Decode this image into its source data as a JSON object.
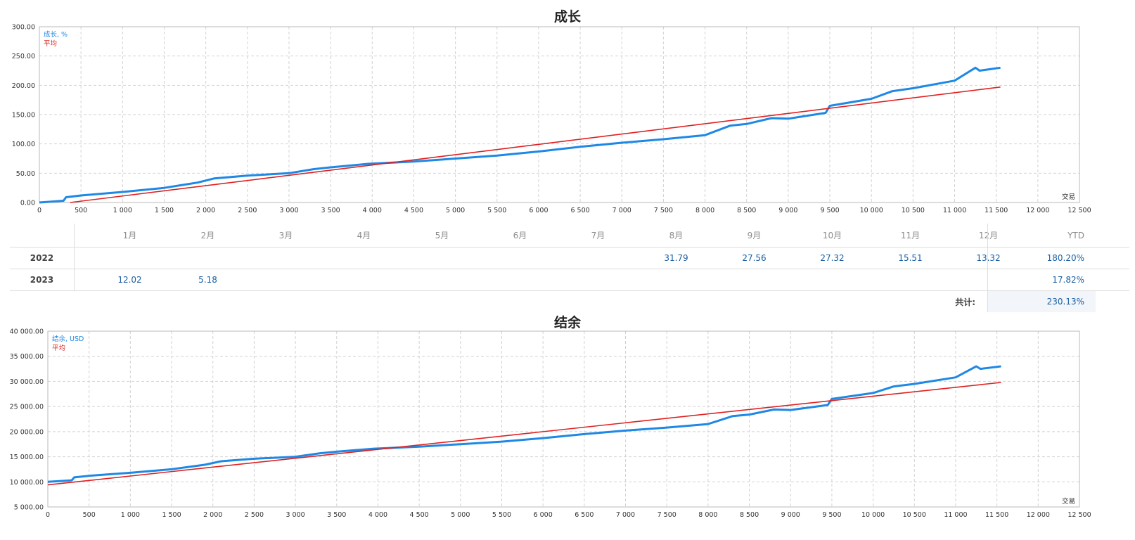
{
  "chart_data": [
    {
      "type": "line",
      "title": "成长",
      "xlabel": "交易",
      "ylabel": "",
      "xlim": [
        0,
        12500
      ],
      "ylim": [
        0,
        300
      ],
      "grid": true,
      "legend_position": "top-left",
      "x_ticks": [
        "0",
        "500",
        "1 000",
        "1 500",
        "2 000",
        "2 500",
        "3 000",
        "3 500",
        "4 000",
        "4 500",
        "5 000",
        "5 500",
        "6 000",
        "6 500",
        "7 000",
        "7 500",
        "8 000",
        "8 500",
        "9 000",
        "9 500",
        "10 000",
        "10 500",
        "11 000",
        "11 500",
        "12 000",
        "12 500"
      ],
      "y_ticks": [
        "0.00",
        "50.00",
        "100.00",
        "150.00",
        "200.00",
        "250.00",
        "300.00"
      ],
      "series": [
        {
          "name": "成长, %",
          "color": "#1e88e5",
          "x": [
            0,
            290,
            320,
            500,
            1000,
            1500,
            1900,
            2100,
            2500,
            3000,
            3300,
            3500,
            3950,
            4500,
            5000,
            5500,
            6000,
            6500,
            7000,
            7500,
            8000,
            8300,
            8500,
            8800,
            9000,
            9450,
            9500,
            10000,
            10250,
            10500,
            11000,
            11250,
            11300,
            11550
          ],
          "y": [
            0,
            3,
            9,
            12,
            18,
            25,
            34,
            41,
            46,
            50,
            57,
            60,
            66,
            70,
            75,
            80,
            87,
            95,
            102,
            108,
            115,
            131,
            134,
            144,
            143,
            153,
            165,
            177,
            190,
            195,
            208,
            230,
            225,
            230
          ]
        },
        {
          "name": "平均",
          "color": "#e02020",
          "x": [
            370,
            11550
          ],
          "y": [
            0,
            197
          ]
        }
      ]
    },
    {
      "type": "line",
      "title": "结余",
      "xlabel": "交易",
      "ylabel": "",
      "xlim": [
        0,
        12500
      ],
      "ylim": [
        5000,
        40000
      ],
      "grid": true,
      "legend_position": "top-left",
      "x_ticks": [
        "0",
        "500",
        "1 000",
        "1 500",
        "2 000",
        "2 500",
        "3 000",
        "3 500",
        "4 000",
        "4 500",
        "5 000",
        "5 500",
        "6 000",
        "6 500",
        "7 000",
        "7 500",
        "8 000",
        "8 500",
        "9 000",
        "9 500",
        "10 000",
        "10 500",
        "11 000",
        "11 500",
        "12 000",
        "12 500"
      ],
      "y_ticks": [
        "5 000.00",
        "10 000.00",
        "15 000.00",
        "20 000.00",
        "25 000.00",
        "30 000.00",
        "35 000.00",
        "40 000.00"
      ],
      "series": [
        {
          "name": "结余, USD",
          "color": "#1e88e5",
          "x": [
            0,
            290,
            320,
            500,
            1000,
            1500,
            1900,
            2100,
            2500,
            3000,
            3300,
            3500,
            3950,
            4500,
            5000,
            5500,
            6000,
            6500,
            7000,
            7500,
            8000,
            8300,
            8500,
            8800,
            9000,
            9450,
            9500,
            10000,
            10250,
            10500,
            11000,
            11250,
            11300,
            11550
          ],
          "y": [
            10000,
            10300,
            10900,
            11200,
            11800,
            12500,
            13400,
            14100,
            14600,
            15000,
            15700,
            16000,
            16600,
            17000,
            17500,
            18000,
            18700,
            19500,
            20200,
            20800,
            21500,
            23100,
            23400,
            24400,
            24300,
            25300,
            26500,
            27700,
            29000,
            29500,
            30800,
            33000,
            32500,
            33000
          ]
        },
        {
          "name": "平均",
          "color": "#e02020",
          "x": [
            0,
            11550
          ],
          "y": [
            9400,
            29800
          ]
        }
      ]
    },
    {
      "type": "table",
      "columns": [
        "",
        "1月",
        "2月",
        "3月",
        "4月",
        "5月",
        "6月",
        "7月",
        "8月",
        "9月",
        "10月",
        "11月",
        "12月",
        "YTD"
      ],
      "rows": [
        {
          "year": "2022",
          "months": [
            "",
            "",
            "",
            "",
            "",
            "",
            "",
            "31.79",
            "27.56",
            "27.32",
            "15.51",
            "13.32"
          ],
          "ytd": "180.20%"
        },
        {
          "year": "2023",
          "months": [
            "12.02",
            "5.18",
            "",
            "",
            "",
            "",
            "",
            "",
            "",
            "",
            "",
            ""
          ],
          "ytd": "17.82%"
        }
      ],
      "total_label": "共计:",
      "total_value": "230.13%"
    }
  ]
}
